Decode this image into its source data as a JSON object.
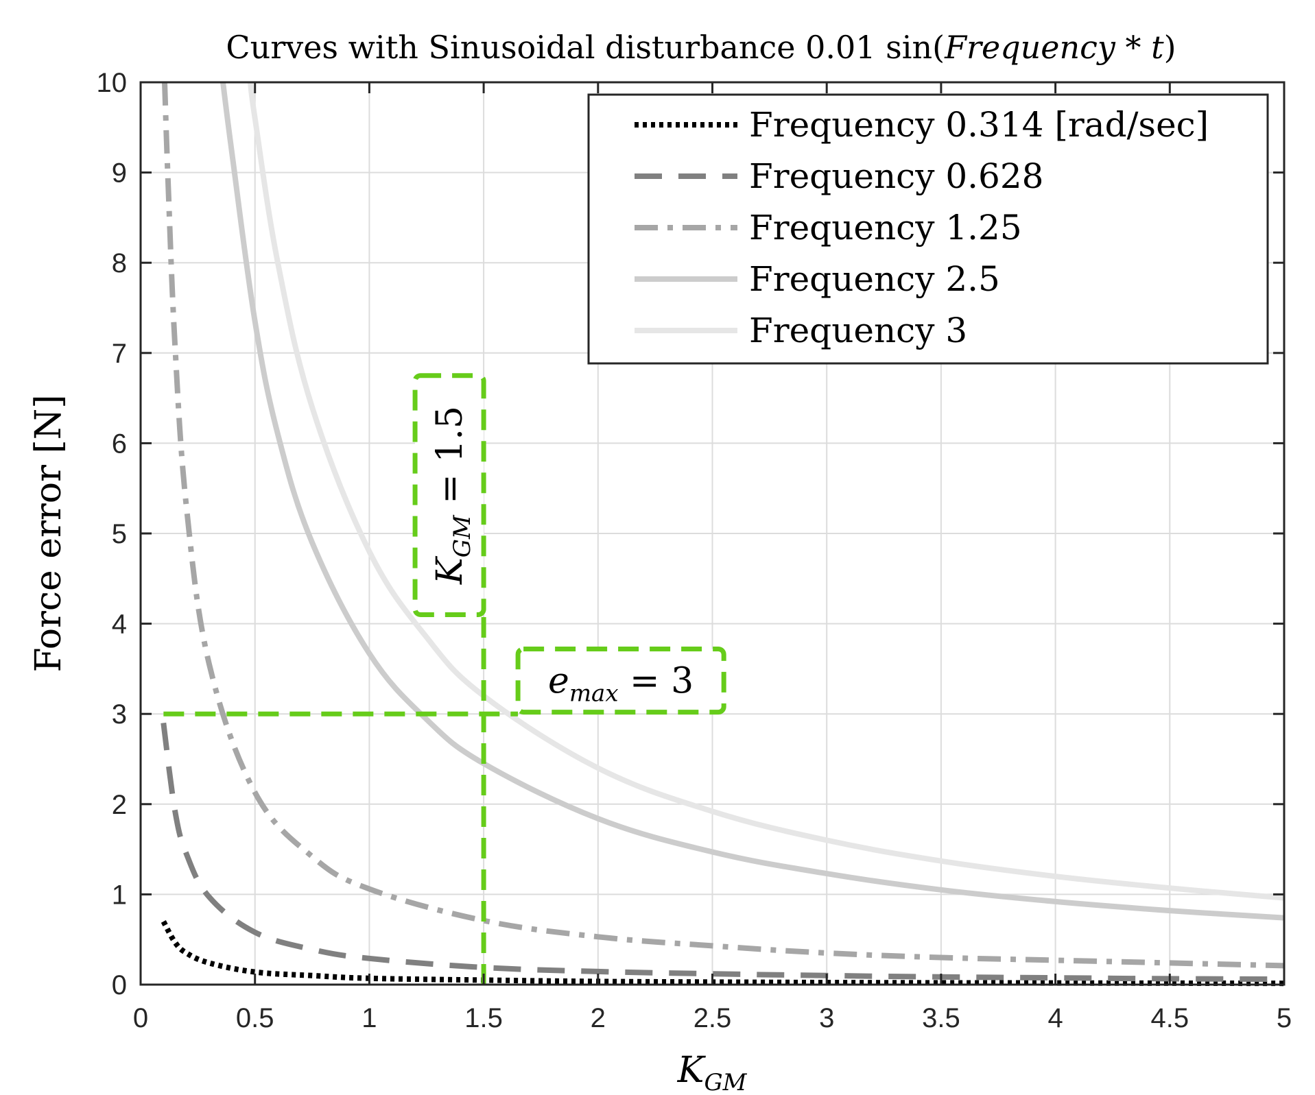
{
  "chart_data": {
    "type": "line",
    "title": "Curves with Sinusoidal disturbance 0.01 sin(Frequency * t)",
    "title_parts": {
      "prefix": "Curves with Sinusoidal disturbance 0.01 sin(",
      "var": "Frequency",
      "op": " * ",
      "t": "t",
      "suffix": ")"
    },
    "xlabel": {
      "base": "K",
      "sub": "GM"
    },
    "ylabel": "Force error [N]",
    "xlim": [
      0,
      5
    ],
    "ylim": [
      0,
      10
    ],
    "xticks": [
      0,
      0.5,
      1,
      1.5,
      2,
      2.5,
      3,
      3.5,
      4,
      4.5,
      5
    ],
    "xtick_labels": [
      "0",
      "0.5",
      "1",
      "1.5",
      "2",
      "2.5",
      "3",
      "3.5",
      "4",
      "4.5",
      "5"
    ],
    "yticks": [
      0,
      1,
      2,
      3,
      4,
      5,
      6,
      7,
      8,
      9,
      10
    ],
    "ytick_labels": [
      "0",
      "1",
      "2",
      "3",
      "4",
      "5",
      "6",
      "7",
      "8",
      "9",
      "10"
    ],
    "grid": true,
    "legend_position": "top-right",
    "series": [
      {
        "name": "Frequency 0.314 [rad/sec]",
        "style": "dotted",
        "color": "#000000",
        "x": [
          0.1,
          0.15,
          0.2,
          0.3,
          0.5,
          0.75,
          1,
          1.5,
          2,
          2.5,
          3,
          3.5,
          4,
          4.5,
          5
        ],
        "y": [
          0.7,
          0.47,
          0.35,
          0.24,
          0.14,
          0.1,
          0.07,
          0.05,
          0.035,
          0.028,
          0.023,
          0.02,
          0.018,
          0.016,
          0.014
        ]
      },
      {
        "name": "Frequency 0.628",
        "style": "dashed",
        "color": "#808080",
        "x": [
          0.1,
          0.15,
          0.2,
          0.3,
          0.5,
          0.75,
          1,
          1.5,
          2,
          2.5,
          3,
          3.5,
          4,
          4.5,
          5
        ],
        "y": [
          2.9,
          1.93,
          1.45,
          0.97,
          0.58,
          0.39,
          0.29,
          0.19,
          0.145,
          0.12,
          0.1,
          0.085,
          0.075,
          0.065,
          0.06
        ]
      },
      {
        "name": "Frequency 1.25",
        "style": "dashdot",
        "color": "#a6a6a6",
        "x": [
          0.105,
          0.12,
          0.15,
          0.2,
          0.3,
          0.5,
          0.75,
          1,
          1.5,
          2,
          2.5,
          3,
          3.5,
          4,
          4.5,
          5
        ],
        "y": [
          10,
          8.9,
          7.1,
          5.3,
          3.55,
          2.13,
          1.42,
          1.06,
          0.71,
          0.53,
          0.43,
          0.35,
          0.3,
          0.27,
          0.24,
          0.21
        ]
      },
      {
        "name": "Frequency 2.5",
        "style": "solid",
        "color": "#cccccc",
        "x": [
          0.36,
          0.4,
          0.5,
          0.6,
          0.75,
          1,
          1.25,
          1.5,
          2,
          2.5,
          3,
          3.5,
          4,
          4.5,
          5
        ],
        "y": [
          10,
          9.2,
          7.35,
          6.1,
          4.9,
          3.67,
          2.94,
          2.45,
          1.84,
          1.47,
          1.23,
          1.05,
          0.92,
          0.82,
          0.74
        ]
      },
      {
        "name": "Frequency 3",
        "style": "solid",
        "color": "#e6e6e6",
        "x": [
          0.48,
          0.5,
          0.6,
          0.75,
          1,
          1.25,
          1.5,
          2,
          2.5,
          3,
          3.5,
          4,
          4.5,
          5
        ],
        "y": [
          10,
          9.6,
          8.0,
          6.4,
          4.8,
          3.85,
          3.2,
          2.4,
          1.92,
          1.6,
          1.37,
          1.2,
          1.07,
          0.96
        ]
      }
    ],
    "annotations": [
      {
        "id": "kgm",
        "base": "K",
        "sub": "GM",
        "rest": " = 1.5",
        "box": {
          "x0": 1.2,
          "x1": 1.5,
          "y0": 4.1,
          "y1": 6.75
        },
        "rotated": true,
        "color": "#66cc1a"
      },
      {
        "id": "emax",
        "base": "e",
        "sub": "max",
        "rest": " = 3",
        "box": {
          "x0": 1.65,
          "x1": 2.55,
          "y0": 3.02,
          "y1": 3.72
        },
        "color": "#66cc1a"
      }
    ],
    "reference_lines": [
      {
        "type": "horizontal",
        "y": 3,
        "x_from": 0.1,
        "x_to": 1.65,
        "color": "#66cc1a"
      },
      {
        "type": "vertical",
        "x": 1.5,
        "y_from": 0,
        "y_to": 4.1,
        "color": "#66cc1a"
      }
    ]
  }
}
